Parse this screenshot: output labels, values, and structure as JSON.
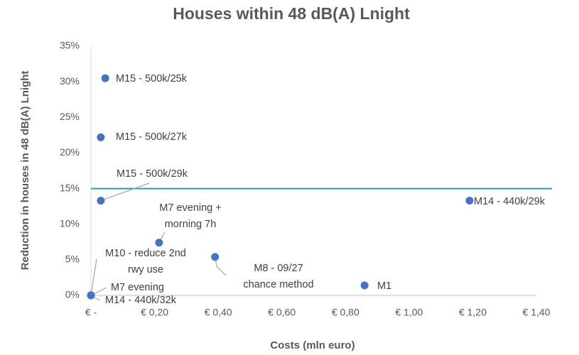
{
  "chart_data": {
    "type": "scatter",
    "title": "Houses within 48 dB(A) Lnight",
    "x_label": "Costs (mln euro)",
    "y_label": "Reduction in houses in 48 dB(A) Lnight",
    "color": "#4472c4",
    "x": [
      0.045,
      0.031,
      0.031,
      1.19,
      0.214,
      0.39,
      0,
      0,
      0,
      0.86
    ],
    "values": [
      30.5,
      22.2,
      13.3,
      13.3,
      7.4,
      5.4,
      0,
      0,
      0,
      1.4
    ],
    "labels": [
      "M15 - 500k/25k",
      "M15 - 500k/27k",
      "M15 - 500k/29k",
      "M14 - 440k/29k",
      "M7 evening +\nmorning 7h",
      "M8 - 09/27\nchance method",
      "M10 - reduce 2nd\nrwy use",
      "M7 evening",
      "M14 - 440k/32k",
      "M1"
    ],
    "reference_line": {
      "value": 15,
      "color": "#1f9fc1"
    },
    "xlim": [
      0,
      1.4
    ],
    "ylim": [
      0,
      35
    ],
    "xticks": [
      {
        "value": 0,
        "label": "€ -"
      },
      {
        "value": 0.2,
        "label": "€ 0,20"
      },
      {
        "value": 0.4,
        "label": "€ 0,40"
      },
      {
        "value": 0.6,
        "label": "€ 0,60"
      },
      {
        "value": 0.8,
        "label": "€ 0,80"
      },
      {
        "value": 1.0,
        "label": "€ 1,00"
      },
      {
        "value": 1.2,
        "label": "€ 1,20"
      },
      {
        "value": 1.4,
        "label": "€ 1,40"
      }
    ],
    "yticks": [
      {
        "value": 0,
        "label": "0%"
      },
      {
        "value": 5,
        "label": "5%"
      },
      {
        "value": 10,
        "label": "10%"
      },
      {
        "value": 15,
        "label": "15%"
      },
      {
        "value": 20,
        "label": "20%"
      },
      {
        "value": 25,
        "label": "25%"
      },
      {
        "value": 30,
        "label": "30%"
      },
      {
        "value": 35,
        "label": "35%"
      }
    ]
  }
}
